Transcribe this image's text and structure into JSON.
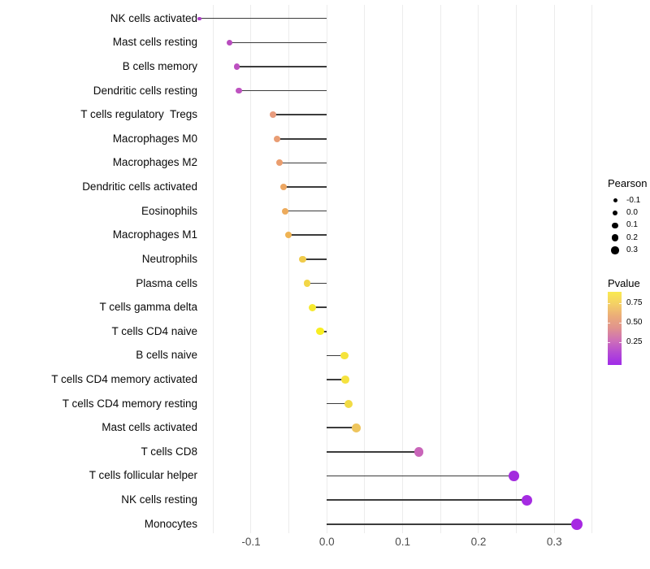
{
  "background": "#FFFFFF",
  "chart_data": {
    "type": "scatter",
    "variant": "horizontal-lollipop",
    "title": "",
    "xlabel": "",
    "ylabel": "",
    "xlim": [
      -0.175,
      0.357
    ],
    "grid": "vertical-only",
    "gridline_values": [
      -0.15,
      -0.1,
      -0.05,
      0.0,
      0.05,
      0.1,
      0.15,
      0.2,
      0.25,
      0.3,
      0.35
    ],
    "gridline_color": "#ECECEC",
    "x_ticks": [
      {
        "value": -0.1,
        "label": "-0.1"
      },
      {
        "value": 0.0,
        "label": "0.0"
      },
      {
        "value": 0.1,
        "label": "0.1"
      },
      {
        "value": 0.2,
        "label": "0.2"
      },
      {
        "value": 0.3,
        "label": "0.3"
      }
    ],
    "stem_color": "#3C3C3C",
    "points": [
      {
        "label": "NK cells activated",
        "pearson": -0.168,
        "pvalue": 0.1,
        "color": "#AA3FC4",
        "size": 4.3
      },
      {
        "label": "Mast cells resting",
        "pearson": -0.128,
        "pvalue": 0.22,
        "color": "#B84CBE",
        "size": 7.0
      },
      {
        "label": "B cells memory",
        "pearson": -0.119,
        "pvalue": 0.25,
        "color": "#BC50C0",
        "size": 7.3
      },
      {
        "label": "Dendritic cells resting",
        "pearson": -0.116,
        "pvalue": 0.26,
        "color": "#BE53C0",
        "size": 7.7
      },
      {
        "label": "T cells regulatory  Tregs",
        "pearson": -0.071,
        "pvalue": 0.5,
        "color": "#E89C7E",
        "size": 7.8
      },
      {
        "label": "Macrophages M0",
        "pearson": -0.066,
        "pvalue": 0.53,
        "color": "#E99D74",
        "size": 8.0
      },
      {
        "label": "Macrophages M2",
        "pearson": -0.062,
        "pvalue": 0.55,
        "color": "#EA9D6E",
        "size": 8.0
      },
      {
        "label": "Dendritic cells activated",
        "pearson": -0.057,
        "pvalue": 0.59,
        "color": "#ECA662",
        "size": 8.3
      },
      {
        "label": "Eosinophils",
        "pearson": -0.055,
        "pvalue": 0.61,
        "color": "#EDAB5C",
        "size": 8.3
      },
      {
        "label": "Macrophages M1",
        "pearson": -0.051,
        "pvalue": 0.64,
        "color": "#EFB353",
        "size": 8.3
      },
      {
        "label": "Neutrophils",
        "pearson": -0.032,
        "pvalue": 0.72,
        "color": "#F0CB4B",
        "size": 8.7
      },
      {
        "label": "Plasma cells",
        "pearson": -0.026,
        "pvalue": 0.75,
        "color": "#F2D647",
        "size": 8.7
      },
      {
        "label": "T cells gamma delta",
        "pearson": -0.019,
        "pvalue": 0.85,
        "color": "#F6E92F",
        "size": 9.0
      },
      {
        "label": "T cells CD4 naive",
        "pearson": -0.009,
        "pvalue": 0.92,
        "color": "#F8EE22",
        "size": 9.3
      },
      {
        "label": "B cells naive",
        "pearson": 0.023,
        "pvalue": 0.82,
        "color": "#F5E33C",
        "size": 9.7
      },
      {
        "label": "T cells CD4 memory activated",
        "pearson": 0.024,
        "pvalue": 0.81,
        "color": "#F5E23E",
        "size": 9.7
      },
      {
        "label": "T cells CD4 memory resting",
        "pearson": 0.029,
        "pvalue": 0.78,
        "color": "#F1DB45",
        "size": 10.0
      },
      {
        "label": "Mast cells activated",
        "pearson": 0.039,
        "pvalue": 0.7,
        "color": "#EEC55D",
        "size": 10.7
      },
      {
        "label": "T cells CD8",
        "pearson": 0.121,
        "pvalue": 0.27,
        "color": "#C965B9",
        "size": 11.3
      },
      {
        "label": "T cells follicular helper",
        "pearson": 0.247,
        "pvalue": 0.03,
        "color": "#A32CDE",
        "size": 12.7
      },
      {
        "label": "NK cells resting",
        "pearson": 0.264,
        "pvalue": 0.02,
        "color": "#A52BE2",
        "size": 13.0
      },
      {
        "label": "Monocytes",
        "pearson": 0.33,
        "pvalue": 0.005,
        "color": "#A728E2",
        "size": 14.0
      }
    ],
    "legend_pearson": {
      "title": "Pearson",
      "dot_color": "#000000",
      "entries": [
        {
          "label": "-0.1",
          "diameter": 5.0
        },
        {
          "label": "0.0",
          "diameter": 6.3
        },
        {
          "label": "0.1",
          "diameter": 7.4
        },
        {
          "label": "0.2",
          "diameter": 8.4
        },
        {
          "label": "0.3",
          "diameter": 9.4
        }
      ]
    },
    "legend_pvalue": {
      "title": "Pvalue",
      "tick_labels": [
        "0.75",
        "0.50",
        "0.25"
      ],
      "gradient_top_to_bottom": [
        "#F9EA50",
        "#F4CF66",
        "#EBAC79",
        "#E0928F",
        "#CE6FB8",
        "#B44AD4",
        "#A02BE8"
      ]
    }
  }
}
